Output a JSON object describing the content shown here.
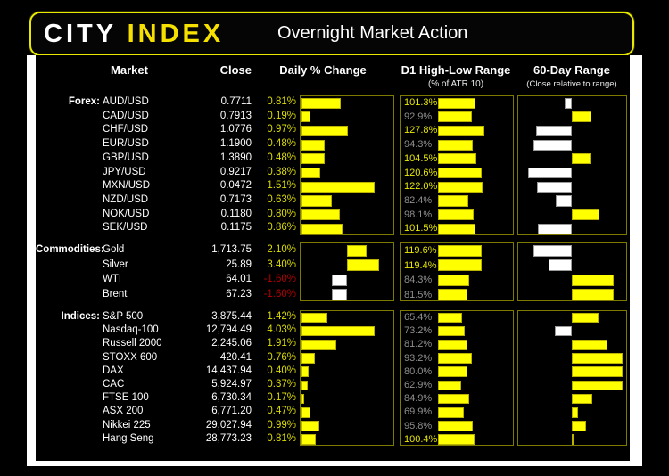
{
  "header": {
    "logo_primary": "CITY",
    "logo_secondary": "INDEX",
    "title": "Overnight Market Action"
  },
  "columns": {
    "market": "Market",
    "close": "Close",
    "daily": "Daily % Change",
    "d1": "D1 High-Low Range",
    "d1_sub": "(% of ATR 10)",
    "range60": "60-Day Range",
    "range60_sub": "(Close relative to range)"
  },
  "colors": {
    "bar_yellow": "#ffff00",
    "bar_white": "#ffffff",
    "text_positive": "#dcdc00",
    "text_negative": "#b40000",
    "text_muted": "#8f8f8f",
    "text_yellow": "#e8e800",
    "box_border": "#7d7a00"
  },
  "chart_data": {
    "type": "table",
    "note": "daily_pct = Daily % Change; d1_atr_pct = D1 High-Low Range as % of ATR 10; range60_pct = close position within 60-day range (0=low,100=high)",
    "sections": [
      {
        "label": "Forex:",
        "rows": [
          {
            "market": "AUD/USD",
            "close": "0.7711",
            "daily_pct": 0.81,
            "d1_atr_pct": 101.3,
            "range60_pct": 43
          },
          {
            "market": "CAD/USD",
            "close": "0.7913",
            "daily_pct": 0.19,
            "d1_atr_pct": 92.9,
            "range60_pct": 69
          },
          {
            "market": "CHF/USD",
            "close": "1.0776",
            "daily_pct": 0.97,
            "d1_atr_pct": 127.8,
            "range60_pct": 15
          },
          {
            "market": "EUR/USD",
            "close": "1.1900",
            "daily_pct": 0.48,
            "d1_atr_pct": 94.3,
            "range60_pct": 12
          },
          {
            "market": "GBP/USD",
            "close": "1.3890",
            "daily_pct": 0.48,
            "d1_atr_pct": 104.5,
            "range60_pct": 68
          },
          {
            "market": "JPY/USD",
            "close": "0.9217",
            "daily_pct": 0.38,
            "d1_atr_pct": 120.6,
            "range60_pct": 7
          },
          {
            "market": "MXN/USD",
            "close": "0.0472",
            "daily_pct": 1.51,
            "d1_atr_pct": 122.0,
            "range60_pct": 16
          },
          {
            "market": "NZD/USD",
            "close": "0.7173",
            "daily_pct": 0.63,
            "d1_atr_pct": 82.4,
            "range60_pct": 34
          },
          {
            "market": "NOK/USD",
            "close": "0.1180",
            "daily_pct": 0.8,
            "d1_atr_pct": 98.1,
            "range60_pct": 77
          },
          {
            "market": "SEK/USD",
            "close": "0.1175",
            "daily_pct": 0.86,
            "d1_atr_pct": 101.5,
            "range60_pct": 17
          }
        ]
      },
      {
        "label": "Commodities:",
        "rows": [
          {
            "market": "Gold",
            "close": "1,713.75",
            "daily_pct": 2.1,
            "d1_atr_pct": 119.6,
            "range60_pct": 12
          },
          {
            "market": "Silver",
            "close": "25.89",
            "daily_pct": 3.4,
            "d1_atr_pct": 119.4,
            "range60_pct": 27
          },
          {
            "market": "WTI",
            "close": "64.01",
            "daily_pct": -1.6,
            "d1_atr_pct": 84.3,
            "range60_pct": 91
          },
          {
            "market": "Brent",
            "close": "67.23",
            "daily_pct": -1.6,
            "d1_atr_pct": 81.5,
            "range60_pct": 91
          }
        ]
      },
      {
        "label": "Indices:",
        "rows": [
          {
            "market": "S&P 500",
            "close": "3,875.44",
            "daily_pct": 1.42,
            "d1_atr_pct": 65.4,
            "range60_pct": 76
          },
          {
            "market": "Nasdaq-100",
            "close": "12,794.49",
            "daily_pct": 4.03,
            "d1_atr_pct": 73.2,
            "range60_pct": 33
          },
          {
            "market": "Russell 2000",
            "close": "2,245.06",
            "daily_pct": 1.91,
            "d1_atr_pct": 81.2,
            "range60_pct": 85
          },
          {
            "market": "STOXX 600",
            "close": "420.41",
            "daily_pct": 0.76,
            "d1_atr_pct": 93.2,
            "range60_pct": 100
          },
          {
            "market": "DAX",
            "close": "14,437.94",
            "daily_pct": 0.4,
            "d1_atr_pct": 80.0,
            "range60_pct": 100
          },
          {
            "market": "CAC",
            "close": "5,924.97",
            "daily_pct": 0.37,
            "d1_atr_pct": 62.9,
            "range60_pct": 100
          },
          {
            "market": "FTSE 100",
            "close": "6,730.34",
            "daily_pct": 0.17,
            "d1_atr_pct": 84.9,
            "range60_pct": 70
          },
          {
            "market": "ASX 200",
            "close": "6,771.20",
            "daily_pct": 0.47,
            "d1_atr_pct": 69.9,
            "range60_pct": 56
          },
          {
            "market": "Nikkei 225",
            "close": "29,027.94",
            "daily_pct": 0.99,
            "d1_atr_pct": 95.8,
            "range60_pct": 64
          },
          {
            "market": "Hang Seng",
            "close": "28,773.23",
            "daily_pct": 0.81,
            "d1_atr_pct": 100.4,
            "range60_pct": 51
          }
        ]
      }
    ]
  }
}
